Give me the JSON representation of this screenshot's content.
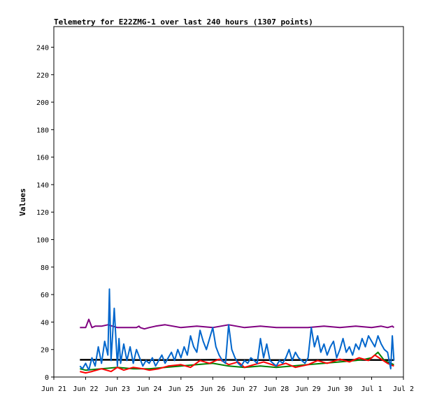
{
  "chart_data": {
    "type": "line",
    "title": "Telemetry for E22ZMG-1 over last 240 hours (1307 points)",
    "xlabel": "",
    "ylabel": "Values",
    "ylim": [
      0,
      255
    ],
    "xlim": [
      0,
      11
    ],
    "y_ticks": [
      0,
      20,
      40,
      60,
      80,
      100,
      120,
      140,
      160,
      180,
      200,
      220,
      240
    ],
    "x_ticks": [
      {
        "value": 0,
        "label": "Jun 21"
      },
      {
        "value": 1,
        "label": "Jun 22"
      },
      {
        "value": 2,
        "label": "Jun 23"
      },
      {
        "value": 3,
        "label": "Jun 24"
      },
      {
        "value": 4,
        "label": "Jun 25"
      },
      {
        "value": 5,
        "label": "Jun 26"
      },
      {
        "value": 6,
        "label": "Jun 27"
      },
      {
        "value": 7,
        "label": "Jun 28"
      },
      {
        "value": 8,
        "label": "Jun 29"
      },
      {
        "value": 9,
        "label": "Jun 30"
      },
      {
        "value": 10,
        "label": "Jul 1"
      },
      {
        "value": 11,
        "label": "Jul 2"
      }
    ],
    "grid": false,
    "legend": "none",
    "series": [
      {
        "color": "#800080",
        "x": [
          0.82,
          1.0,
          1.1,
          1.2,
          1.3,
          1.5,
          1.7,
          2.0,
          2.3,
          2.6,
          2.68,
          2.72,
          2.85,
          3.0,
          3.2,
          3.5,
          4.0,
          4.5,
          5.0,
          5.5,
          6.0,
          6.5,
          7.0,
          7.5,
          8.0,
          8.5,
          9.0,
          9.5,
          10.0,
          10.3,
          10.5,
          10.65,
          10.7
        ],
        "y": [
          36,
          36,
          42,
          36,
          37,
          37,
          38,
          36,
          36,
          36,
          37,
          36,
          35,
          36,
          37,
          38,
          36,
          37,
          36,
          38,
          36,
          37,
          36,
          36,
          36,
          37,
          36,
          37,
          36,
          37,
          36,
          37,
          36
        ]
      },
      {
        "color": "#000000",
        "x": [
          0.82,
          1.5,
          2.0,
          2.5,
          3.0,
          4.0,
          5.0,
          6.0,
          7.0,
          8.0,
          9.0,
          10.0,
          10.7
        ],
        "y": [
          12.5,
          12.5,
          12.5,
          12.4,
          12.3,
          12.4,
          12.5,
          12.4,
          12.3,
          12.4,
          12.5,
          12.4,
          12.3
        ]
      },
      {
        "color": "#008000",
        "x": [
          0.82,
          1.0,
          1.5,
          2.0,
          2.5,
          3.0,
          3.5,
          4.0,
          4.5,
          5.0,
          5.5,
          6.0,
          6.5,
          7.0,
          7.5,
          8.0,
          8.5,
          9.0,
          9.5,
          9.8,
          10.0,
          10.2,
          10.4,
          10.6,
          10.7
        ],
        "y": [
          6,
          5,
          6,
          7,
          6,
          6,
          7,
          8,
          9,
          10,
          8,
          7,
          8,
          7,
          8,
          9,
          10,
          11,
          12,
          13,
          14,
          18,
          12,
          10,
          9
        ]
      },
      {
        "color": "#ff0000",
        "x": [
          0.82,
          1.0,
          1.2,
          1.5,
          1.8,
          2.0,
          2.2,
          2.5,
          2.8,
          3.0,
          3.3,
          3.6,
          4.0,
          4.3,
          4.6,
          4.9,
          5.2,
          5.5,
          5.8,
          6.0,
          6.3,
          6.6,
          7.0,
          7.3,
          7.6,
          8.0,
          8.3,
          8.6,
          9.0,
          9.3,
          9.6,
          9.9,
          10.1,
          10.3,
          10.5,
          10.7
        ],
        "y": [
          4,
          3,
          4,
          6,
          4,
          7,
          5,
          7,
          6,
          5,
          6,
          8,
          9,
          7,
          12,
          10,
          13,
          9,
          11,
          7,
          9,
          11,
          8,
          10,
          7,
          9,
          12,
          10,
          13,
          11,
          14,
          12,
          16,
          13,
          10,
          8
        ]
      },
      {
        "color": "#0066cc",
        "x": [
          0.82,
          0.9,
          1.0,
          1.1,
          1.2,
          1.3,
          1.4,
          1.5,
          1.6,
          1.7,
          1.75,
          1.8,
          1.9,
          2.0,
          2.05,
          2.1,
          2.2,
          2.3,
          2.4,
          2.5,
          2.6,
          2.7,
          2.8,
          2.9,
          3.0,
          3.1,
          3.2,
          3.3,
          3.4,
          3.5,
          3.6,
          3.7,
          3.8,
          3.9,
          4.0,
          4.1,
          4.2,
          4.3,
          4.4,
          4.5,
          4.6,
          4.7,
          4.8,
          4.9,
          5.0,
          5.1,
          5.2,
          5.3,
          5.4,
          5.5,
          5.6,
          5.7,
          5.8,
          5.9,
          6.0,
          6.1,
          6.2,
          6.3,
          6.4,
          6.5,
          6.6,
          6.7,
          6.8,
          6.9,
          7.0,
          7.1,
          7.2,
          7.3,
          7.4,
          7.5,
          7.6,
          7.7,
          7.8,
          7.9,
          8.0,
          8.1,
          8.2,
          8.3,
          8.4,
          8.5,
          8.6,
          8.7,
          8.8,
          8.9,
          9.0,
          9.1,
          9.2,
          9.3,
          9.4,
          9.5,
          9.6,
          9.7,
          9.8,
          9.9,
          10.0,
          10.1,
          10.2,
          10.3,
          10.4,
          10.5,
          10.6,
          10.65,
          10.7
        ],
        "y": [
          8,
          6,
          10,
          5,
          14,
          8,
          22,
          10,
          26,
          16,
          64,
          12,
          50,
          8,
          28,
          10,
          24,
          12,
          22,
          10,
          20,
          14,
          8,
          12,
          10,
          14,
          8,
          12,
          16,
          10,
          14,
          18,
          12,
          20,
          14,
          22,
          16,
          30,
          22,
          18,
          34,
          26,
          20,
          28,
          36,
          22,
          16,
          12,
          10,
          38,
          20,
          14,
          10,
          8,
          12,
          10,
          14,
          12,
          10,
          28,
          14,
          24,
          12,
          10,
          8,
          12,
          10,
          14,
          20,
          12,
          18,
          14,
          12,
          10,
          14,
          36,
          22,
          30,
          18,
          24,
          16,
          22,
          26,
          14,
          20,
          28,
          18,
          22,
          16,
          24,
          20,
          28,
          22,
          30,
          26,
          22,
          30,
          24,
          20,
          18,
          6,
          30,
          12
        ]
      }
    ]
  }
}
